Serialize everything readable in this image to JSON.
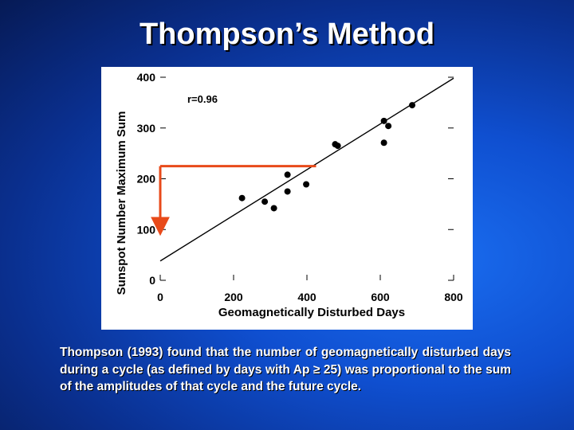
{
  "slide": {
    "title": "Thompson’s Method",
    "caption": "Thompson (1993) found that the number of geomagnetically disturbed days during a cycle (as defined by days with Ap ≥ 25) was proportional to the sum of the amplitudes of that cycle and the future cycle."
  },
  "chart_data": {
    "type": "scatter",
    "xlabel": "Geomagnetically Disturbed Days",
    "ylabel": "Sunspot Number Maximum Sum",
    "xlim": [
      0,
      800
    ],
    "ylim": [
      0,
      400
    ],
    "x_ticks": [
      0,
      200,
      400,
      600,
      800
    ],
    "y_ticks": [
      0,
      100,
      200,
      300,
      400
    ],
    "annotation": "r=0.96",
    "points": [
      {
        "x": 223,
        "y": 162
      },
      {
        "x": 285,
        "y": 155
      },
      {
        "x": 310,
        "y": 142
      },
      {
        "x": 347,
        "y": 208
      },
      {
        "x": 347,
        "y": 175
      },
      {
        "x": 398,
        "y": 189
      },
      {
        "x": 477,
        "y": 268
      },
      {
        "x": 484,
        "y": 265
      },
      {
        "x": 610,
        "y": 314
      },
      {
        "x": 622,
        "y": 304
      },
      {
        "x": 610,
        "y": 271
      },
      {
        "x": 687,
        "y": 345
      }
    ],
    "fit_line": {
      "x": [
        0,
        800
      ],
      "y": [
        38,
        398
      ]
    },
    "arrow": {
      "color": "#e84a1a",
      "from_x": 425,
      "level_y": 225,
      "to_x": 0,
      "to_y": 100
    },
    "colors": {
      "points": "#000000",
      "line": "#000000",
      "arrow": "#e84a1a"
    }
  }
}
